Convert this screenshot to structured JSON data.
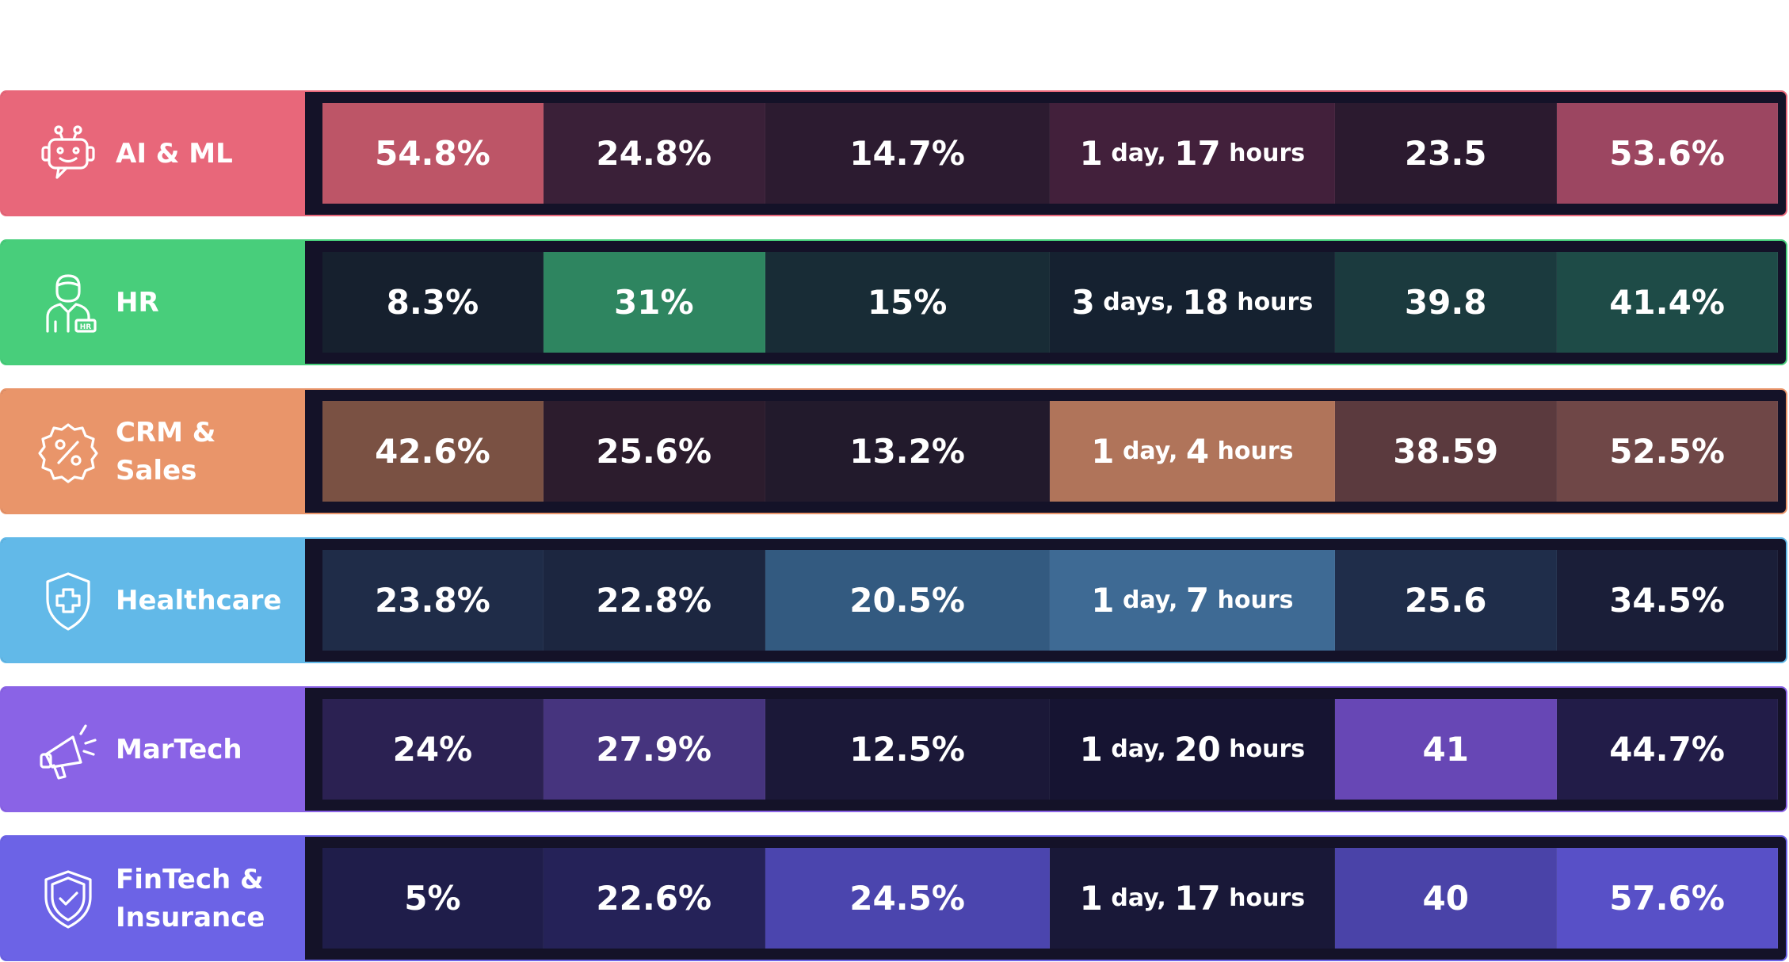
{
  "chart_data": {
    "type": "table",
    "rows": [
      {
        "category": "AI & ML",
        "icon": "robot-chat-icon",
        "accent": "#E8677A",
        "border": "#E8677A",
        "values": [
          "54.8%",
          "24.8%",
          "14.7%",
          "",
          "23.5",
          "53.6%"
        ],
        "duration": {
          "days": "1",
          "days_unit": "day,",
          "hours": "17",
          "hours_unit": "hours"
        },
        "cell_colors": [
          "#BD5567",
          "#3A2038",
          "#2C1B30",
          "#42203B",
          "#2B1A2F",
          "#9C4661"
        ]
      },
      {
        "category": "HR",
        "icon": "employee-icon",
        "accent": "#48CE7B",
        "border": "#48CE7B",
        "values": [
          "8.3%",
          "31%",
          "15%",
          "",
          "39.8",
          "41.4%"
        ],
        "duration": {
          "days": "3",
          "days_unit": "days,",
          "hours": "18",
          "hours_unit": "hours"
        },
        "cell_colors": [
          "#16202E",
          "#2E8560",
          "#182C36",
          "#152130",
          "#1B3A3E",
          "#1E4B47"
        ]
      },
      {
        "category": "CRM & Sales",
        "icon": "percent-badge-icon",
        "accent": "#E9956A",
        "border": "#E9956A",
        "values": [
          "42.6%",
          "25.6%",
          "13.2%",
          "",
          "38.59",
          "52.5%"
        ],
        "duration": {
          "days": "1",
          "days_unit": "day,",
          "hours": "4",
          "hours_unit": "hours"
        },
        "cell_colors": [
          "#7A5143",
          "#2C1C2D",
          "#221A2C",
          "#B0745A",
          "#5B3A3E",
          "#6F4747"
        ]
      },
      {
        "category": "Healthcare",
        "icon": "shield-cross-icon",
        "accent": "#62B9E8",
        "border": "#62B9E8",
        "values": [
          "23.8%",
          "22.8%",
          "20.5%",
          "",
          "25.6",
          "34.5%"
        ],
        "duration": {
          "days": "1",
          "days_unit": "day,",
          "hours": "7",
          "hours_unit": "hours"
        },
        "cell_colors": [
          "#1F2C48",
          "#1C2640",
          "#335A80",
          "#3E6A94",
          "#1F2D4A",
          "#1A1E38"
        ]
      },
      {
        "category": "MarTech",
        "icon": "megaphone-icon",
        "accent": "#8A63E6",
        "border": "#8A63E6",
        "values": [
          "24%",
          "27.9%",
          "12.5%",
          "",
          "41",
          "44.7%"
        ],
        "duration": {
          "days": "1",
          "days_unit": "day,",
          "hours": "20",
          "hours_unit": "hours"
        },
        "cell_colors": [
          "#2B2152",
          "#46347E",
          "#1B1838",
          "#161432",
          "#6747B5",
          "#221C48"
        ]
      },
      {
        "category": "FinTech & Insurance",
        "icon": "shield-check-icon",
        "accent": "#6C63E6",
        "border": "#6C63E6",
        "values": [
          "5%",
          "22.6%",
          "24.5%",
          "",
          "40",
          "57.6%"
        ],
        "duration": {
          "days": "1",
          "days_unit": "day,",
          "hours": "17",
          "hours_unit": "hours"
        },
        "cell_colors": [
          "#1F1D4A",
          "#252258",
          "#4B45AE",
          "#191838",
          "#4A43A8",
          "#5850C7"
        ]
      }
    ]
  }
}
